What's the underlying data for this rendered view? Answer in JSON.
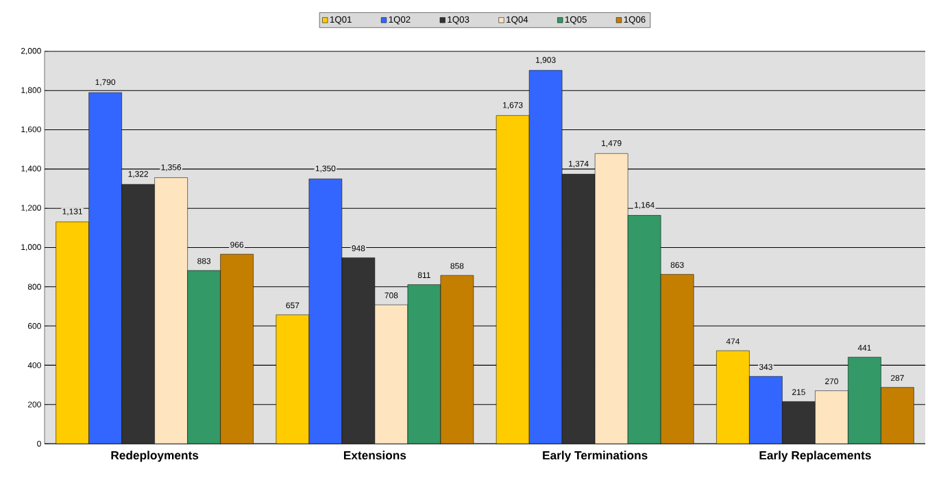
{
  "chart_data": {
    "type": "bar",
    "categories": [
      "Redeployments",
      "Extensions",
      "Early Terminations",
      "Early Replacements"
    ],
    "series": [
      {
        "name": "1Q01",
        "color": "#ffcc00",
        "values": [
          1131,
          657,
          1673,
          474
        ],
        "value_labels": [
          "1,131",
          "657",
          "1,673",
          "474"
        ]
      },
      {
        "name": "1Q02",
        "color": "#3366ff",
        "values": [
          1790,
          1350,
          1903,
          343
        ],
        "value_labels": [
          "1,790",
          "1,350",
          "1,903",
          "343"
        ]
      },
      {
        "name": "1Q03",
        "color": "#333333",
        "values": [
          1322,
          948,
          1374,
          215
        ],
        "value_labels": [
          "1,322",
          "948",
          "1,374",
          "215"
        ]
      },
      {
        "name": "1Q04",
        "color": "#ffe5bf",
        "values": [
          1356,
          708,
          1479,
          270
        ],
        "value_labels": [
          "1,356",
          "708",
          "1,479",
          "270"
        ]
      },
      {
        "name": "1Q05",
        "color": "#339966",
        "values": [
          883,
          811,
          1164,
          441
        ],
        "value_labels": [
          "883",
          "811",
          "1,164",
          "441"
        ]
      },
      {
        "name": "1Q06",
        "color": "#c47f00",
        "values": [
          966,
          858,
          863,
          287
        ],
        "value_labels": [
          "966",
          "858",
          "863",
          "287"
        ]
      }
    ],
    "ylim": [
      0,
      2000
    ],
    "yticks": [
      0,
      200,
      400,
      600,
      800,
      {
        "value": 1000,
        "label": "1,000"
      },
      {
        "value": 1200,
        "label": "1,200"
      },
      {
        "value": 1400,
        "label": "1,400"
      },
      {
        "value": 1600,
        "label": "1,600"
      },
      {
        "value": 1800,
        "label": "1,800"
      },
      {
        "value": 2000,
        "label": "2,000"
      }
    ],
    "grid": "y",
    "legend": "top"
  }
}
